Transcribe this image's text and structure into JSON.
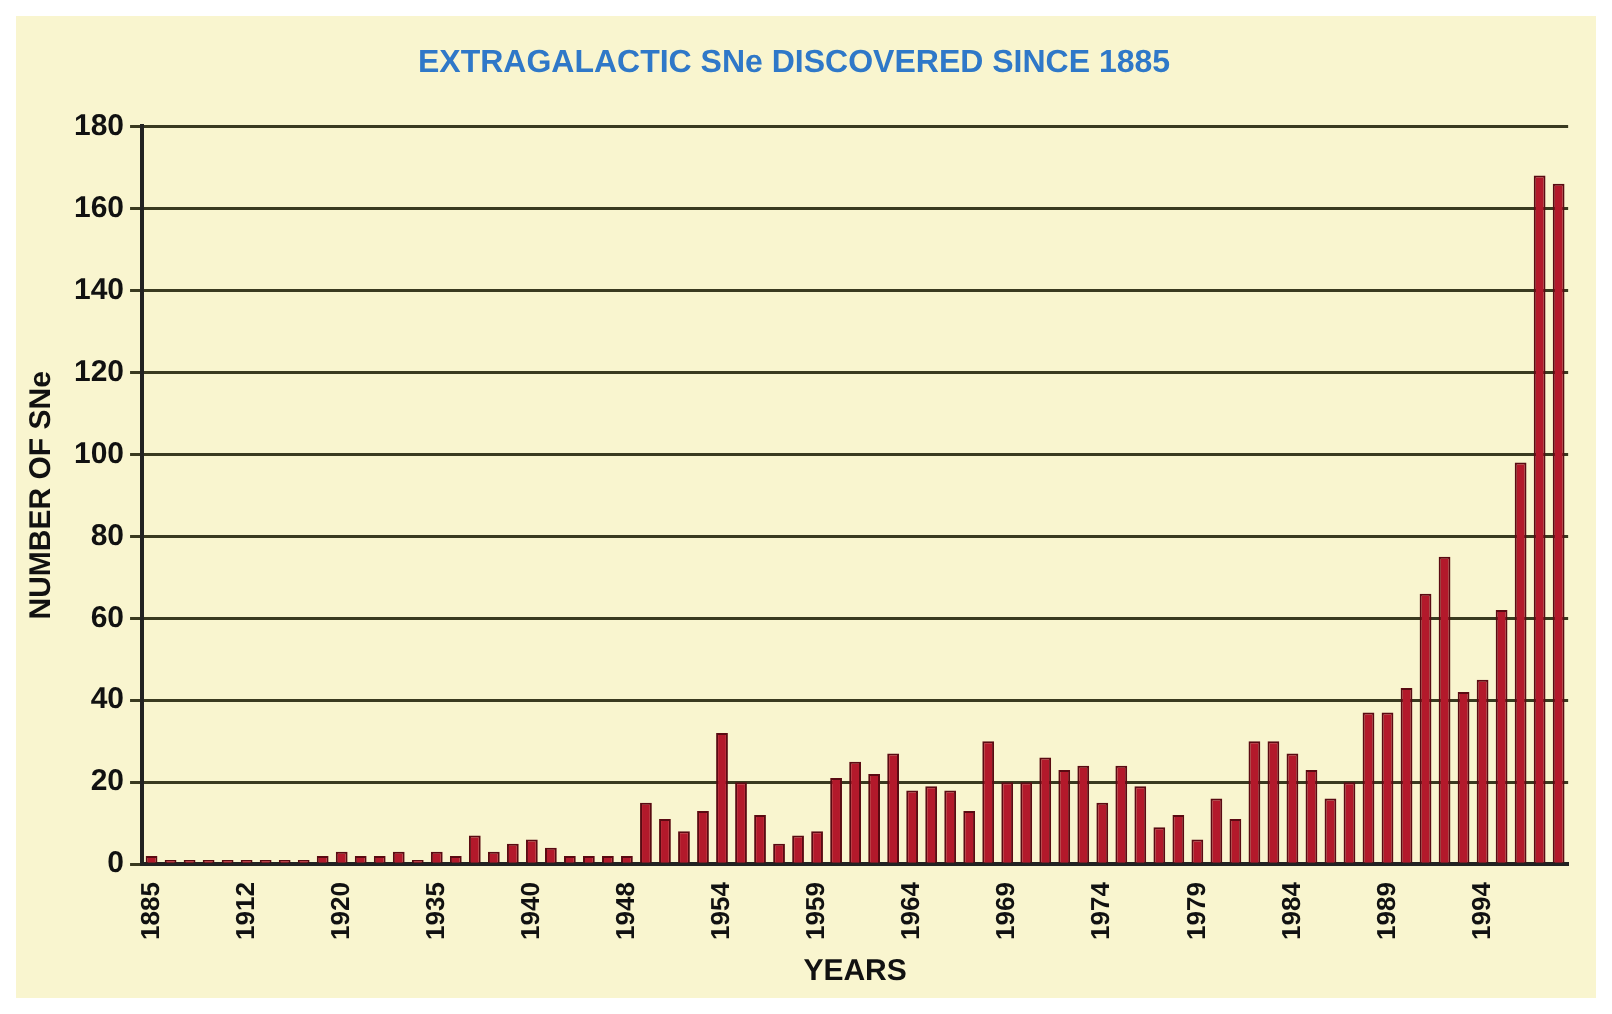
{
  "chart_data": {
    "type": "bar",
    "title": "EXTRAGALACTIC SNe DISCOVERED SINCE 1885",
    "xlabel": "YEARS",
    "ylabel": "NUMBER OF SNe",
    "categories": [
      "1885",
      null,
      null,
      null,
      null,
      "1912",
      null,
      null,
      null,
      null,
      "1920",
      null,
      null,
      null,
      null,
      "1935",
      null,
      null,
      null,
      null,
      "1940",
      null,
      null,
      null,
      null,
      "1948",
      null,
      null,
      null,
      null,
      "1954",
      null,
      null,
      null,
      null,
      "1959",
      null,
      null,
      null,
      null,
      "1964",
      null,
      null,
      null,
      null,
      "1969",
      null,
      null,
      null,
      null,
      "1974",
      null,
      null,
      null,
      null,
      "1979",
      null,
      null,
      null,
      null,
      "1984",
      null,
      null,
      null,
      null,
      "1989",
      null,
      null,
      null,
      null,
      "1994",
      null,
      null,
      null,
      null
    ],
    "values": [
      2,
      1,
      1,
      1,
      1,
      1,
      1,
      1,
      1,
      2,
      3,
      2,
      2,
      3,
      1,
      3,
      2,
      7,
      3,
      5,
      6,
      4,
      2,
      2,
      2,
      2,
      15,
      11,
      8,
      13,
      32,
      20,
      12,
      5,
      7,
      8,
      21,
      25,
      22,
      27,
      18,
      19,
      18,
      13,
      30,
      20,
      20,
      26,
      23,
      24,
      15,
      24,
      19,
      9,
      12,
      6,
      16,
      11,
      30,
      30,
      27,
      23,
      16,
      20,
      37,
      37,
      43,
      66,
      75,
      42,
      45,
      62,
      98,
      168,
      166
    ],
    "color": "#b3192b",
    "ylim": [
      0,
      180
    ],
    "yticks": [
      0,
      20,
      40,
      60,
      80,
      100,
      120,
      140,
      160,
      180
    ],
    "grid": "y"
  }
}
